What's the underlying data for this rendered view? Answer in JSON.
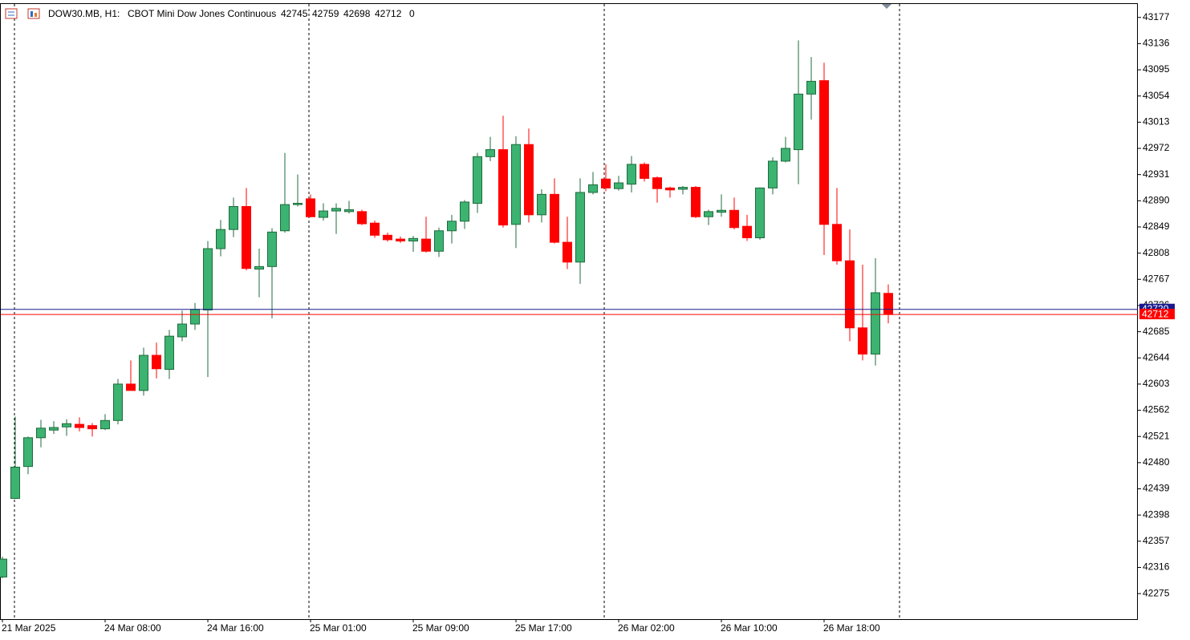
{
  "chart_data": {
    "type": "candlestick",
    "symbol": "DOW30.MB, H1:",
    "description": "CBOT Mini Dow Jones Continuous",
    "spread": 0,
    "categories": [
      "21 Mar 2025",
      null,
      null,
      null,
      null,
      null,
      null,
      null,
      "24 Mar 08:00",
      null,
      null,
      null,
      null,
      null,
      null,
      null,
      "24 Mar 16:00",
      null,
      null,
      null,
      null,
      null,
      null,
      null,
      "25 Mar 01:00",
      null,
      null,
      null,
      null,
      null,
      null,
      null,
      "25 Mar 09:00",
      null,
      null,
      null,
      null,
      null,
      null,
      null,
      "25 Mar 17:00",
      null,
      null,
      null,
      null,
      null,
      null,
      null,
      "26 Mar 02:00",
      null,
      null,
      null,
      null,
      null,
      null,
      null,
      "26 Mar 10:00",
      null,
      null,
      null,
      null,
      null,
      null,
      null,
      "26 Mar 18:00",
      null,
      null,
      null,
      null,
      null
    ],
    "open": [
      42301,
      42424,
      42474,
      42519,
      42531,
      42536,
      42540,
      42538,
      42533,
      42546,
      42603,
      42593,
      42648,
      42626,
      42677,
      42697,
      42719,
      42815,
      42845,
      42881,
      42783,
      42787,
      42843,
      42884,
      42893,
      42864,
      42874,
      42873,
      42873,
      42855,
      42836,
      42830,
      42827,
      42830,
      42811,
      42843,
      42858,
      42886,
      42959,
      42970,
      42853,
      42978,
      42868,
      42900,
      42825,
      42794,
      42903,
      42924,
      42909,
      42916,
      42947,
      42926,
      42910,
      42908,
      42911,
      42865,
      42872,
      42875,
      42850,
      42832,
      42910,
      42952,
      42970,
      43057,
      43078,
      42853,
      42796,
      42691,
      42650,
      42745
    ],
    "high": [
      42333,
      42552,
      42521,
      42547,
      42545,
      42548,
      42551,
      42542,
      42556,
      42611,
      42640,
      42660,
      42668,
      42688,
      42718,
      42730,
      42827,
      42860,
      42895,
      42910,
      42815,
      42847,
      42965,
      42931,
      42900,
      42886,
      42886,
      42890,
      42876,
      42859,
      42840,
      42834,
      42835,
      42865,
      42848,
      42868,
      42891,
      42965,
      42990,
      43023,
      42991,
      43003,
      42908,
      42925,
      42865,
      42925,
      42935,
      42947,
      42929,
      42960,
      42950,
      42928,
      42912,
      42913,
      42913,
      42876,
      42900,
      42895,
      42868,
      42911,
      42958,
      42990,
      43141,
      43115,
      43106,
      42910,
      42845,
      42790,
      42800,
      42759
    ],
    "low": [
      42299,
      42423,
      42462,
      42504,
      42525,
      42522,
      42529,
      42521,
      42531,
      42540,
      42593,
      42585,
      42612,
      42611,
      42670,
      42688,
      42614,
      42803,
      42833,
      42781,
      42739,
      42706,
      42840,
      42881,
      42864,
      42859,
      42838,
      42870,
      42852,
      42832,
      42826,
      42824,
      42810,
      42809,
      42802,
      42823,
      42846,
      42871,
      42952,
      42848,
      42816,
      42856,
      42856,
      42823,
      42783,
      42760,
      42900,
      42905,
      42906,
      42903,
      42920,
      42887,
      42895,
      42900,
      42863,
      42852,
      42865,
      42845,
      42827,
      42829,
      42900,
      42950,
      42916,
      43017,
      42805,
      42790,
      42670,
      42640,
      42632,
      42698
    ],
    "close": [
      42329,
      42473,
      42519,
      42534,
      42535,
      42541,
      42535,
      42533,
      42546,
      42603,
      42593,
      42648,
      42627,
      42678,
      42697,
      42720,
      42815,
      42845,
      42881,
      42784,
      42787,
      42841,
      42884,
      42886,
      42865,
      42874,
      42878,
      42876,
      42854,
      42836,
      42829,
      42827,
      42831,
      42811,
      42843,
      42858,
      42888,
      42959,
      42970,
      42852,
      42978,
      42868,
      42900,
      42825,
      42794,
      42903,
      42915,
      42910,
      42918,
      42947,
      42925,
      42909,
      42907,
      42911,
      42865,
      42873,
      42875,
      42848,
      42832,
      42910,
      42952,
      42972,
      43057,
      43077,
      42853,
      42796,
      42691,
      42650,
      42746,
      42712
    ],
    "up_color": "#3cb371",
    "down_color": "#ff0000",
    "bid": 42712,
    "ask": 42720,
    "bid_color": "#ff0000",
    "ask_color": "#1a1a8c",
    "ylim": [
      42235,
      43198
    ],
    "yticks": [
      42275,
      42316,
      42357,
      42398,
      42439,
      42480,
      42521,
      42562,
      42603,
      42644,
      42685,
      42726,
      42767,
      42808,
      42849,
      42890,
      42931,
      42972,
      43013,
      43054,
      43095,
      43136,
      43177
    ]
  }
}
